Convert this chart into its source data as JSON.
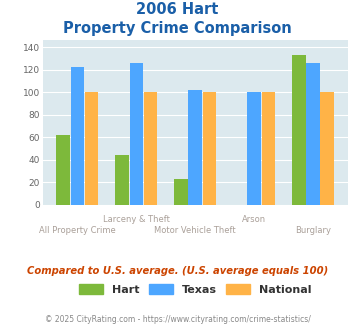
{
  "title_line1": "2006 Hart",
  "title_line2": "Property Crime Comparison",
  "categories": [
    "All Property Crime",
    "Larceny & Theft",
    "Motor Vehicle Theft",
    "Arson",
    "Burglary"
  ],
  "hart_values": [
    62,
    44,
    23,
    0,
    133
  ],
  "texas_values": [
    123,
    126,
    102,
    100,
    126
  ],
  "national_values": [
    100,
    100,
    100,
    100,
    100
  ],
  "hart_color": "#7db93b",
  "texas_color": "#4da6ff",
  "national_color": "#ffb347",
  "ylim": [
    0,
    147
  ],
  "yticks": [
    0,
    20,
    40,
    60,
    80,
    100,
    120,
    140
  ],
  "background_color": "#dce9ee",
  "note": "Compared to U.S. average. (U.S. average equals 100)",
  "footer": "© 2025 CityRating.com - https://www.cityrating.com/crime-statistics/",
  "title_color": "#1a5fa8",
  "label_color": "#aaa099",
  "note_color": "#cc4400",
  "footer_color": "#888888"
}
